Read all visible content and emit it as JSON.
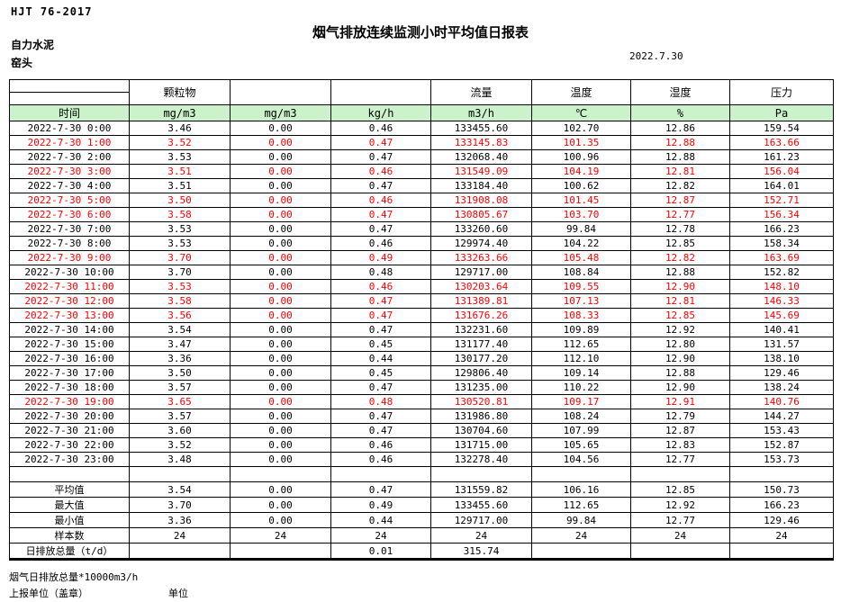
{
  "header": {
    "standard": "HJT  76-2017",
    "title": "烟气排放连续监测小时平均值日报表",
    "company": "自力水泥",
    "station": "窑头",
    "date": "2022.7.30"
  },
  "table": {
    "group_headers": [
      "",
      "颗粒物",
      "",
      "",
      "流量",
      "温度",
      "湿度",
      "压力"
    ],
    "unit_row": [
      "时间",
      "mg/m3",
      "mg/m3",
      "kg/h",
      "m3/h",
      "℃",
      "%",
      "Pa"
    ],
    "rows": [
      {
        "time": "2022-7-30 0:00",
        "values": [
          "3.46",
          "0.00",
          "0.46",
          "133455.60",
          "102.70",
          "12.86",
          "159.54"
        ],
        "red": false
      },
      {
        "time": "2022-7-30 1:00",
        "values": [
          "3.52",
          "0.00",
          "0.47",
          "133145.83",
          "101.35",
          "12.88",
          "163.66"
        ],
        "red": true
      },
      {
        "time": "2022-7-30 2:00",
        "values": [
          "3.53",
          "0.00",
          "0.47",
          "132068.40",
          "100.96",
          "12.88",
          "161.23"
        ],
        "red": false
      },
      {
        "time": "2022-7-30 3:00",
        "values": [
          "3.51",
          "0.00",
          "0.46",
          "131549.09",
          "104.19",
          "12.81",
          "156.04"
        ],
        "red": true
      },
      {
        "time": "2022-7-30 4:00",
        "values": [
          "3.51",
          "0.00",
          "0.47",
          "133184.40",
          "100.62",
          "12.82",
          "164.01"
        ],
        "red": false
      },
      {
        "time": "2022-7-30 5:00",
        "values": [
          "3.50",
          "0.00",
          "0.46",
          "131908.08",
          "101.45",
          "12.87",
          "152.71"
        ],
        "red": true
      },
      {
        "time": "2022-7-30 6:00",
        "values": [
          "3.58",
          "0.00",
          "0.47",
          "130805.67",
          "103.70",
          "12.77",
          "156.34"
        ],
        "red": true
      },
      {
        "time": "2022-7-30 7:00",
        "values": [
          "3.53",
          "0.00",
          "0.47",
          "133260.60",
          "99.84",
          "12.78",
          "166.23"
        ],
        "red": false
      },
      {
        "time": "2022-7-30 8:00",
        "values": [
          "3.53",
          "0.00",
          "0.46",
          "129974.40",
          "104.22",
          "12.85",
          "158.34"
        ],
        "red": false
      },
      {
        "time": "2022-7-30 9:00",
        "values": [
          "3.70",
          "0.00",
          "0.49",
          "133263.66",
          "105.48",
          "12.82",
          "163.69"
        ],
        "red": true
      },
      {
        "time": "2022-7-30 10:00",
        "values": [
          "3.70",
          "0.00",
          "0.48",
          "129717.00",
          "108.84",
          "12.88",
          "152.82"
        ],
        "red": false
      },
      {
        "time": "2022-7-30 11:00",
        "values": [
          "3.53",
          "0.00",
          "0.46",
          "130203.64",
          "109.55",
          "12.90",
          "148.10"
        ],
        "red": true
      },
      {
        "time": "2022-7-30 12:00",
        "values": [
          "3.58",
          "0.00",
          "0.47",
          "131389.81",
          "107.13",
          "12.81",
          "146.33"
        ],
        "red": true
      },
      {
        "time": "2022-7-30 13:00",
        "values": [
          "3.56",
          "0.00",
          "0.47",
          "131676.26",
          "108.33",
          "12.85",
          "145.69"
        ],
        "red": true
      },
      {
        "time": "2022-7-30 14:00",
        "values": [
          "3.54",
          "0.00",
          "0.47",
          "132231.60",
          "109.89",
          "12.92",
          "140.41"
        ],
        "red": false
      },
      {
        "time": "2022-7-30 15:00",
        "values": [
          "3.47",
          "0.00",
          "0.45",
          "131177.40",
          "112.65",
          "12.80",
          "131.57"
        ],
        "red": false
      },
      {
        "time": "2022-7-30 16:00",
        "values": [
          "3.36",
          "0.00",
          "0.44",
          "130177.20",
          "112.10",
          "12.90",
          "138.10"
        ],
        "red": false
      },
      {
        "time": "2022-7-30 17:00",
        "values": [
          "3.50",
          "0.00",
          "0.45",
          "129806.40",
          "109.14",
          "12.88",
          "129.46"
        ],
        "red": false
      },
      {
        "time": "2022-7-30 18:00",
        "values": [
          "3.57",
          "0.00",
          "0.47",
          "131235.00",
          "110.22",
          "12.90",
          "138.24"
        ],
        "red": false
      },
      {
        "time": "2022-7-30 19:00",
        "values": [
          "3.65",
          "0.00",
          "0.48",
          "130520.81",
          "109.17",
          "12.91",
          "140.76"
        ],
        "red": true
      },
      {
        "time": "2022-7-30 20:00",
        "values": [
          "3.57",
          "0.00",
          "0.47",
          "131986.80",
          "108.24",
          "12.79",
          "144.27"
        ],
        "red": false
      },
      {
        "time": "2022-7-30 21:00",
        "values": [
          "3.60",
          "0.00",
          "0.47",
          "130704.60",
          "107.99",
          "12.87",
          "153.43"
        ],
        "red": false
      },
      {
        "time": "2022-7-30 22:00",
        "values": [
          "3.52",
          "0.00",
          "0.46",
          "131715.00",
          "105.65",
          "12.83",
          "152.87"
        ],
        "red": false
      },
      {
        "time": "2022-7-30 23:00",
        "values": [
          "3.48",
          "0.00",
          "0.46",
          "132278.40",
          "104.56",
          "12.77",
          "153.73"
        ],
        "red": false
      }
    ],
    "summary_rows": [
      {
        "label": "平均值",
        "values": [
          "3.54",
          "0.00",
          "0.47",
          "131559.82",
          "106.16",
          "12.85",
          "150.73"
        ]
      },
      {
        "label": "最大值",
        "values": [
          "3.70",
          "0.00",
          "0.49",
          "133455.60",
          "112.65",
          "12.92",
          "166.23"
        ]
      },
      {
        "label": "最小值",
        "values": [
          "3.36",
          "0.00",
          "0.44",
          "129717.00",
          "99.84",
          "12.77",
          "129.46"
        ]
      },
      {
        "label": "样本数",
        "values": [
          "24",
          "24",
          "24",
          "24",
          "24",
          "24",
          "24"
        ]
      },
      {
        "label": "日排放总量（t/d）",
        "values": [
          "",
          "",
          "0.01",
          "315.74",
          "",
          "",
          ""
        ]
      }
    ]
  },
  "footer": {
    "note": "烟气日排放总量*10000m3/h",
    "report_unit": "上报单位（盖章）",
    "unit_label": "单位"
  },
  "colors": {
    "header_green": "#ccf2cc",
    "alert_red": "#ff0000"
  }
}
